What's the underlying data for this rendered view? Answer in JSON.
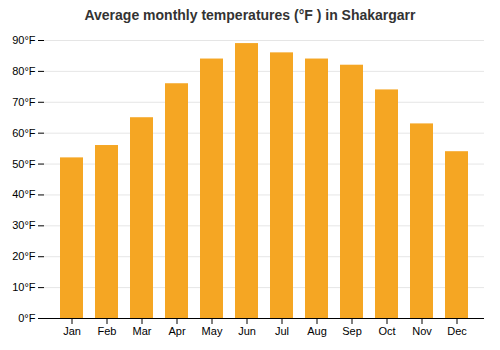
{
  "chart_data": {
    "type": "bar",
    "title": "Average monthly temperatures (°F ) in Shakargarr",
    "categories": [
      "Jan",
      "Feb",
      "Mar",
      "Apr",
      "May",
      "Jun",
      "Jul",
      "Aug",
      "Sep",
      "Oct",
      "Nov",
      "Dec"
    ],
    "values": [
      52,
      56,
      65,
      76,
      84,
      89,
      86,
      84,
      82,
      74,
      63,
      54
    ],
    "color": "#F5A623",
    "ylim": [
      0,
      90
    ],
    "yticks": [
      {
        "value": 0,
        "label": "0°F"
      },
      {
        "value": 10,
        "label": "10°F"
      },
      {
        "value": 20,
        "label": "20°F"
      },
      {
        "value": 30,
        "label": "30°F"
      },
      {
        "value": 40,
        "label": "40°F"
      },
      {
        "value": 50,
        "label": "50°F"
      },
      {
        "value": 60,
        "label": "60°F"
      },
      {
        "value": 70,
        "label": "70°F"
      },
      {
        "value": 80,
        "label": "80°F"
      },
      {
        "value": 90,
        "label": "90°F"
      }
    ],
    "grid": true
  }
}
